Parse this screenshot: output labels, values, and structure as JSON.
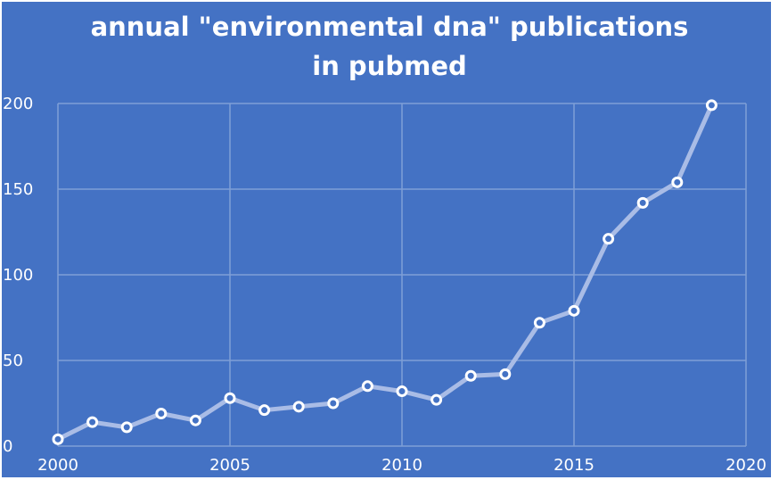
{
  "chart_data": {
    "type": "line",
    "title_line1": "annual \"environmental dna\" publications",
    "title_line2": "in pubmed",
    "xlabel": "",
    "ylabel": "",
    "xlim": [
      2000,
      2020
    ],
    "ylim": [
      0,
      200
    ],
    "x_ticks": [
      2000,
      2005,
      2010,
      2015,
      2020
    ],
    "y_ticks": [
      0,
      50,
      100,
      150,
      200
    ],
    "grid": true,
    "colors": {
      "background": "#4472C4",
      "line": "#A9BCE6",
      "grid": "#7F9FD6",
      "marker_fill": "#4472C4",
      "marker_edge": "#ffffff",
      "text": "#ffffff"
    },
    "series": [
      {
        "x": [
          2000,
          2001,
          2002,
          2003,
          2004,
          2005,
          2006,
          2007,
          2008,
          2009,
          2010,
          2011,
          2012,
          2013,
          2014,
          2015,
          2016,
          2017,
          2018,
          2019
        ],
        "values": [
          4,
          14,
          11,
          19,
          15,
          28,
          21,
          23,
          25,
          35,
          32,
          27,
          41,
          42,
          72,
          79,
          121,
          142,
          154,
          199
        ]
      }
    ]
  }
}
